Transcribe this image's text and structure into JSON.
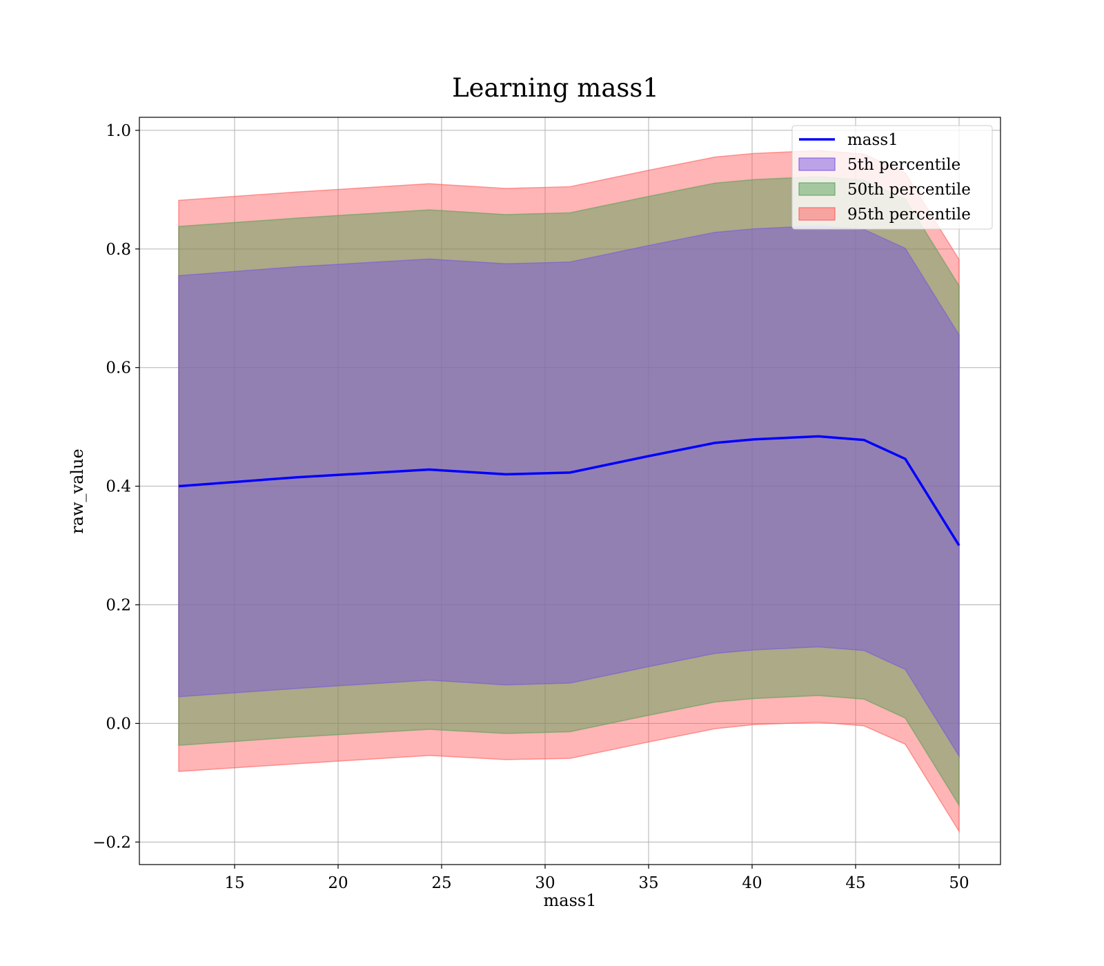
{
  "chart_data": {
    "type": "area",
    "title": "Learning mass1",
    "xlabel": "mass1",
    "ylabel": "raw_value",
    "xlim": [
      10.4,
      52.0
    ],
    "ylim": [
      -0.238,
      1.022
    ],
    "xticks": [
      15,
      20,
      25,
      30,
      35,
      40,
      45,
      50
    ],
    "yticks": [
      -0.2,
      0.0,
      0.2,
      0.4,
      0.6,
      0.8,
      1.0
    ],
    "ytick_labels": [
      "−0.2",
      "0.0",
      "0.2",
      "0.4",
      "0.6",
      "0.8",
      "1.0"
    ],
    "grid": true,
    "legend_position": "top-right",
    "x": [
      12.3,
      18.0,
      24.4,
      28.1,
      31.2,
      34.9,
      38.2,
      40.1,
      43.2,
      45.4,
      47.4,
      50.0
    ],
    "line": {
      "name": "mass1",
      "color": "#0000ff",
      "values": [
        0.4,
        0.415,
        0.428,
        0.42,
        0.423,
        0.45,
        0.473,
        0.479,
        0.484,
        0.478,
        0.446,
        0.3
      ]
    },
    "bands": [
      {
        "name": "95th percentile",
        "color": "#ff5a5a",
        "opacity": 0.45,
        "lower": [
          -0.081,
          -0.068,
          -0.054,
          -0.061,
          -0.059,
          -0.032,
          -0.009,
          -0.002,
          0.002,
          -0.004,
          -0.035,
          -0.182
        ],
        "upper": [
          0.882,
          0.896,
          0.91,
          0.902,
          0.905,
          0.932,
          0.955,
          0.961,
          0.966,
          0.96,
          0.928,
          0.782
        ]
      },
      {
        "name": "50th percentile",
        "color": "#5aa05a",
        "opacity": 0.5,
        "lower": [
          -0.037,
          -0.023,
          -0.01,
          -0.017,
          -0.014,
          0.013,
          0.036,
          0.042,
          0.047,
          0.041,
          0.009,
          -0.138
        ],
        "upper": [
          0.838,
          0.852,
          0.866,
          0.858,
          0.861,
          0.888,
          0.911,
          0.917,
          0.922,
          0.916,
          0.884,
          0.738
        ]
      },
      {
        "name": "5th percentile",
        "color": "#7a55e0",
        "opacity": 0.5,
        "lower": [
          0.045,
          0.059,
          0.073,
          0.065,
          0.068,
          0.095,
          0.118,
          0.124,
          0.129,
          0.123,
          0.091,
          -0.055
        ],
        "upper": [
          0.755,
          0.77,
          0.783,
          0.775,
          0.778,
          0.805,
          0.828,
          0.834,
          0.839,
          0.833,
          0.801,
          0.655
        ]
      }
    ],
    "legend": [
      {
        "label": "mass1",
        "kind": "line",
        "color": "#0000ff"
      },
      {
        "label": "5th percentile",
        "kind": "patch",
        "color": "#7a55e0"
      },
      {
        "label": "50th percentile",
        "kind": "patch",
        "color": "#5aa05a"
      },
      {
        "label": "95th percentile",
        "kind": "patch",
        "color": "#ff5a5a"
      }
    ]
  }
}
